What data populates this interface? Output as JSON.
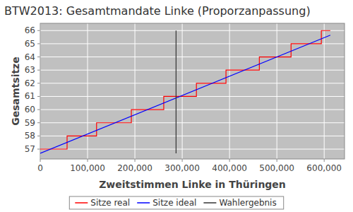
{
  "chart_data": {
    "type": "line",
    "title": "BTW2013: Gesamtmandate Linke (Proporzanpassung)",
    "x_label": "Zweitstimmen Linke in Thüringen",
    "y_label": "Gesamtsitze",
    "xlim": [
      0,
      643000
    ],
    "ylim": [
      56.25,
      66.55
    ],
    "xticks": [
      0,
      {
        "value": 100000,
        "label": "100,000"
      },
      {
        "value": 200000,
        "label": "200,000"
      },
      {
        "value": 300000,
        "label": "300,000"
      },
      {
        "value": 400000,
        "label": "400,000"
      },
      {
        "value": 500000,
        "label": "500,000"
      },
      {
        "value": 600000,
        "label": "600,000"
      }
    ],
    "yticks": [
      57,
      58,
      59,
      60,
      61,
      62,
      63,
      64,
      65,
      66
    ],
    "grid": true,
    "legend": "bottom",
    "series": [
      {
        "name": "Sitze real",
        "color": "#ff0000",
        "line_style": "solid",
        "x": [
          0,
          56700,
          56700,
          119000,
          119000,
          192500,
          192500,
          261000,
          261000,
          330000,
          330000,
          392500,
          392500,
          463000,
          463000,
          530000,
          530000,
          594000,
          594000,
          613000
        ],
        "values": [
          57,
          57,
          58,
          58,
          59,
          59,
          60,
          60,
          61,
          61,
          62,
          62,
          63,
          63,
          64,
          64,
          65,
          65,
          66,
          66
        ]
      },
      {
        "name": "Sitze ideal",
        "color": "#0000ff",
        "line_style": "solid",
        "x": [
          0,
          613000
        ],
        "values": [
          56.68,
          65.65
        ]
      },
      {
        "name": "Wahlergebnis",
        "color": "#333333",
        "line_style": "solid",
        "x": [
          287000,
          287000
        ],
        "values": [
          56.68,
          66.0
        ]
      }
    ]
  }
}
